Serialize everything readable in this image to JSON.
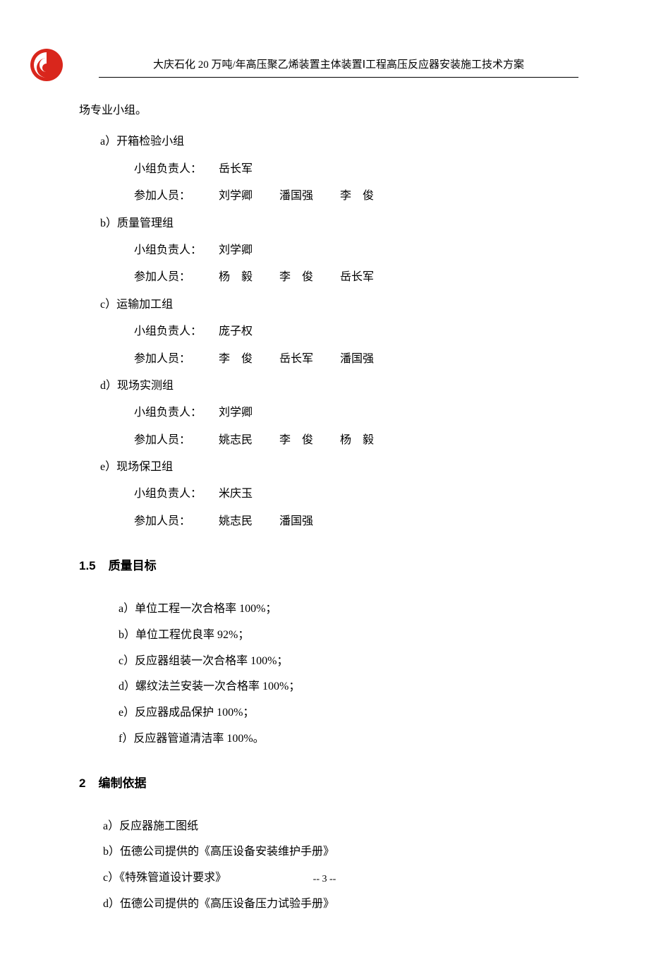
{
  "header": {
    "title": "大庆石化 20 万吨/年高压聚乙烯装置主体装置Ⅰ工程高压反应器安装施工技术方案"
  },
  "opening_line": "场专业小组。",
  "groups": [
    {
      "label": "a）开箱检验小组",
      "leader_label": "小组负责人：",
      "leader": "岳长军",
      "members_label": "参加人员：",
      "members": [
        "刘学卿",
        "潘国强",
        "李　俊"
      ]
    },
    {
      "label": "b）质量管理组",
      "leader_label": "小组负责人：",
      "leader": "刘学卿",
      "members_label": "参加人员：",
      "members": [
        "杨　毅",
        "李　俊",
        "岳长军"
      ]
    },
    {
      "label": "c）运输加工组",
      "leader_label": "小组负责人：",
      "leader": "庞子权",
      "members_label": "参加人员：",
      "members": [
        "李　俊",
        "岳长军",
        "潘国强"
      ]
    },
    {
      "label": "d）现场实测组",
      "leader_label": "小组负责人：",
      "leader": "刘学卿",
      "members_label": "参加人员：",
      "members": [
        "姚志民",
        "李　俊",
        "杨　毅"
      ]
    },
    {
      "label": "e）现场保卫组",
      "leader_label": "小组负责人：",
      "leader": "米庆玉",
      "members_label": "参加人员：",
      "members": [
        "姚志民",
        "潘国强"
      ]
    }
  ],
  "section_1_5": {
    "number": "1.5",
    "title": "质量目标",
    "items": [
      "a）单位工程一次合格率 100%；",
      "b）单位工程优良率 92%；",
      "c）反应器组装一次合格率 100%；",
      "d）螺纹法兰安装一次合格率 100%；",
      "e）反应器成品保护 100%；",
      "f）反应器管道清洁率 100%。"
    ]
  },
  "section_2": {
    "number": "2",
    "title": "编制依据",
    "items": [
      "a）反应器施工图纸",
      "b）伍德公司提供的《高压设备安装维护手册》",
      "c）《特殊管道设计要求》",
      "d）伍德公司提供的《高压设备压力试验手册》"
    ]
  },
  "page_number": "-- 3 --",
  "logo": {
    "bg_color": "#d9261c",
    "fg_color": "#ffffff"
  }
}
